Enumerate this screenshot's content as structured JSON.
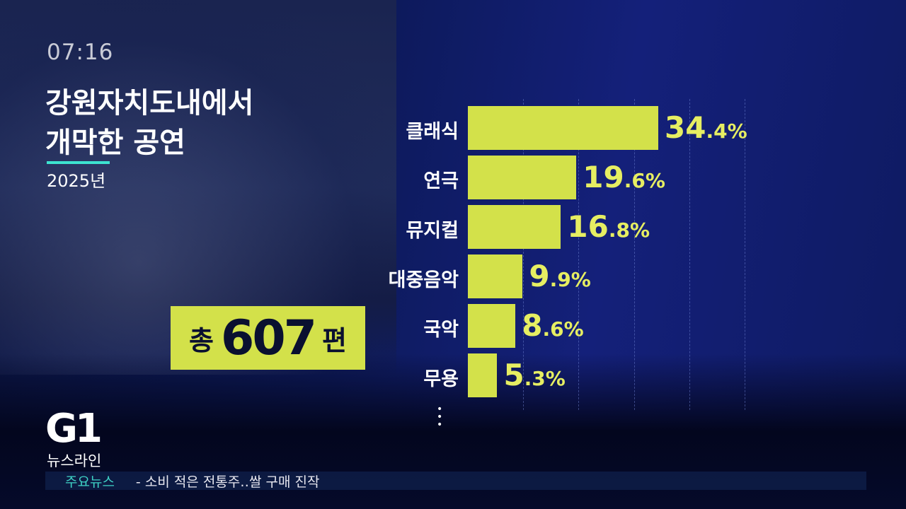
{
  "time": "07:16",
  "title_line1": "강원자치도내에서",
  "title_line2": "개막한 공연",
  "year": "2025년",
  "total": {
    "prefix": "총",
    "number": "607",
    "suffix": "편"
  },
  "accent_color": "#d3e14a",
  "chart_data": {
    "type": "bar",
    "orientation": "horizontal",
    "categories": [
      "클래식",
      "연극",
      "뮤지컬",
      "대중음악",
      "국악",
      "무용"
    ],
    "values": [
      34.4,
      19.6,
      16.8,
      9.9,
      8.6,
      5.3
    ],
    "labels": [
      {
        "i": "34",
        ".d": ".4%"
      }
    ],
    "unit": "%",
    "xlim": [
      0,
      50
    ],
    "grid": true,
    "more_indicator": "⋮"
  },
  "value_labels": [
    {
      "int": "34",
      "dec": ".4%"
    },
    {
      "int": "19",
      "dec": ".6%"
    },
    {
      "int": "16",
      "dec": ".8%"
    },
    {
      "int": "9",
      "dec": ".9%"
    },
    {
      "int": "8",
      "dec": ".6%"
    },
    {
      "int": "5",
      "dec": ".3%"
    }
  ],
  "logo": "G1",
  "program": "뉴스라인",
  "ticker": {
    "label": "주요뉴스",
    "text": "- 소비 적은 전통주‥쌀 구매 진작"
  }
}
